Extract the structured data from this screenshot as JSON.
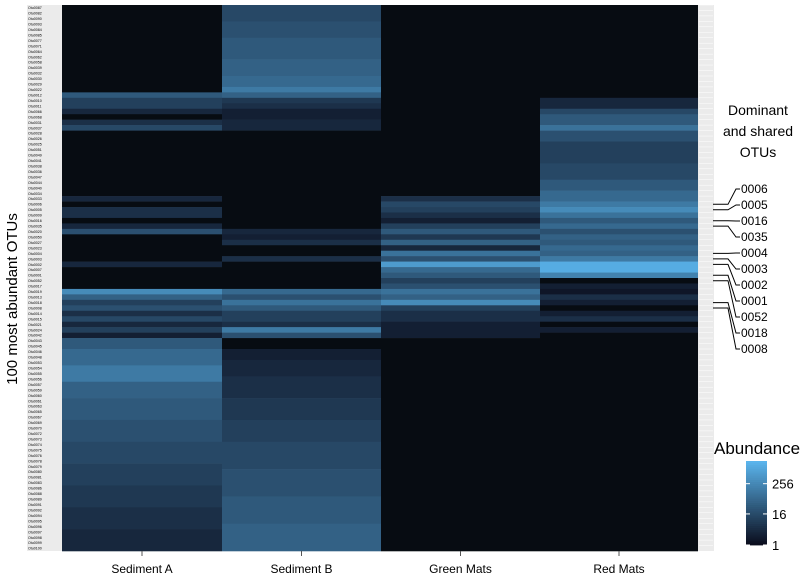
{
  "chart_data": {
    "type": "heatmap",
    "title": "",
    "ylabel": "100 most abundant OTUs",
    "xlabel": "",
    "columns": [
      "Sediment A",
      "Sediment B",
      "Green Mats",
      "Red Mats"
    ],
    "row_labels": [
      "Otu0087",
      "Otu0082",
      "Otu0090",
      "Otu0093",
      "Otu0084",
      "Otu0085",
      "Otu0077",
      "Otu0071",
      "Otu0064",
      "Otu0062",
      "Otu0058",
      "Otu0039",
      "Otu0032",
      "Otu0030",
      "Otu0029",
      "Otu0022",
      "Otu0012",
      "Otu0010",
      "Otu0011",
      "Otu0066",
      "Otu0068",
      "Otu0031",
      "Otu0037",
      "Otu0028",
      "Otu0026",
      "Otu0025",
      "Otu0051",
      "Otu0049",
      "Otu0041",
      "Otu0038",
      "Otu0036",
      "Otu0047",
      "Otu0044",
      "Otu0040",
      "Otu0034",
      "Otu0033",
      "Otu0006",
      "Otu0005",
      "Otu0009",
      "Otu0016",
      "Otu0035",
      "Otu0020",
      "Otu0050",
      "Otu0027",
      "Otu0023",
      "Otu0004",
      "Otu0003",
      "Otu0002",
      "Otu0007",
      "Otu0001",
      "Otu0052",
      "Otu0017",
      "Otu0019",
      "Otu0013",
      "Otu0018",
      "Otu0008",
      "Otu0014",
      "Otu0015",
      "Otu0021",
      "Otu0024",
      "Otu0042",
      "Otu0043",
      "Otu0045",
      "Otu0046",
      "Otu0048",
      "Otu0053",
      "Otu0054",
      "Otu0055",
      "Otu0056",
      "Otu0057",
      "Otu0059",
      "Otu0060",
      "Otu0061",
      "Otu0063",
      "Otu0065",
      "Otu0067",
      "Otu0069",
      "Otu0070",
      "Otu0072",
      "Otu0073",
      "Otu0074",
      "Otu0075",
      "Otu0076",
      "Otu0078",
      "Otu0079",
      "Otu0080",
      "Otu0081",
      "Otu0083",
      "Otu0086",
      "Otu0088",
      "Otu0089",
      "Otu0091",
      "Otu0092",
      "Otu0094",
      "Otu0095",
      "Otu0096",
      "Otu0097",
      "Otu0098",
      "Otu0099",
      "Otu0100"
    ],
    "bands": {
      "Sediment A": [
        {
          "from": 0,
          "to": 16,
          "level": 0
        },
        {
          "from": 16,
          "to": 17,
          "level": 0.45
        },
        {
          "from": 17,
          "to": 19,
          "level": 0.3
        },
        {
          "from": 19,
          "to": 20,
          "level": 0.15
        },
        {
          "from": 20,
          "to": 21,
          "level": 0
        },
        {
          "from": 21,
          "to": 22,
          "level": 0.2
        },
        {
          "from": 22,
          "to": 23,
          "level": 0.35
        },
        {
          "from": 23,
          "to": 35,
          "level": 0
        },
        {
          "from": 35,
          "to": 36,
          "level": 0.15
        },
        {
          "from": 36,
          "to": 37,
          "level": 0
        },
        {
          "from": 37,
          "to": 39,
          "level": 0.2
        },
        {
          "from": 39,
          "to": 40,
          "level": 0
        },
        {
          "from": 40,
          "to": 41,
          "level": 0.15
        },
        {
          "from": 41,
          "to": 42,
          "level": 0.4
        },
        {
          "from": 42,
          "to": 47,
          "level": 0
        },
        {
          "from": 47,
          "to": 48,
          "level": 0.15
        },
        {
          "from": 48,
          "to": 52,
          "level": 0
        },
        {
          "from": 52,
          "to": 53,
          "level": 0.75
        },
        {
          "from": 53,
          "to": 54,
          "level": 0.5
        },
        {
          "from": 54,
          "to": 55,
          "level": 0.3
        },
        {
          "from": 55,
          "to": 56,
          "level": 0.4
        },
        {
          "from": 56,
          "to": 57,
          "level": 0.2
        },
        {
          "from": 57,
          "to": 58,
          "level": 0.35
        },
        {
          "from": 58,
          "to": 59,
          "level": 0.15
        },
        {
          "from": 59,
          "to": 60,
          "level": 0.3
        },
        {
          "from": 60,
          "to": 61,
          "level": 0.1
        },
        {
          "from": 61,
          "to": 63,
          "level": 0.45
        },
        {
          "from": 63,
          "to": 66,
          "level": 0.55
        },
        {
          "from": 66,
          "to": 69,
          "level": 0.65
        },
        {
          "from": 69,
          "to": 72,
          "level": 0.5
        },
        {
          "from": 72,
          "to": 76,
          "level": 0.45
        },
        {
          "from": 76,
          "to": 80,
          "level": 0.4
        },
        {
          "from": 80,
          "to": 84,
          "level": 0.35
        },
        {
          "from": 84,
          "to": 88,
          "level": 0.3
        },
        {
          "from": 88,
          "to": 92,
          "level": 0.25
        },
        {
          "from": 92,
          "to": 96,
          "level": 0.2
        },
        {
          "from": 96,
          "to": 100,
          "level": 0.15
        }
      ],
      "Sediment B": [
        {
          "from": 0,
          "to": 3,
          "level": 0.35
        },
        {
          "from": 3,
          "to": 6,
          "level": 0.4
        },
        {
          "from": 6,
          "to": 10,
          "level": 0.45
        },
        {
          "from": 10,
          "to": 13,
          "level": 0.5
        },
        {
          "from": 13,
          "to": 15,
          "level": 0.55
        },
        {
          "from": 15,
          "to": 16,
          "level": 0.65
        },
        {
          "from": 16,
          "to": 17,
          "level": 0.5
        },
        {
          "from": 17,
          "to": 18,
          "level": 0.25
        },
        {
          "from": 18,
          "to": 19,
          "level": 0.2
        },
        {
          "from": 19,
          "to": 21,
          "level": 0.1
        },
        {
          "from": 21,
          "to": 23,
          "level": 0.15
        },
        {
          "from": 23,
          "to": 41,
          "level": 0
        },
        {
          "from": 41,
          "to": 42,
          "level": 0.15
        },
        {
          "from": 42,
          "to": 43,
          "level": 0.1
        },
        {
          "from": 43,
          "to": 44,
          "level": 0.2
        },
        {
          "from": 44,
          "to": 46,
          "level": 0
        },
        {
          "from": 46,
          "to": 47,
          "level": 0.2
        },
        {
          "from": 47,
          "to": 52,
          "level": 0
        },
        {
          "from": 52,
          "to": 53,
          "level": 0.55
        },
        {
          "from": 53,
          "to": 54,
          "level": 0.4
        },
        {
          "from": 54,
          "to": 55,
          "level": 0.6
        },
        {
          "from": 55,
          "to": 56,
          "level": 0.45
        },
        {
          "from": 56,
          "to": 58,
          "level": 0.3
        },
        {
          "from": 58,
          "to": 59,
          "level": 0.2
        },
        {
          "from": 59,
          "to": 60,
          "level": 0.65
        },
        {
          "from": 60,
          "to": 61,
          "level": 0.4
        },
        {
          "from": 61,
          "to": 63,
          "level": 0
        },
        {
          "from": 63,
          "to": 65,
          "level": 0.1
        },
        {
          "from": 65,
          "to": 68,
          "level": 0.15
        },
        {
          "from": 68,
          "to": 72,
          "level": 0.2
        },
        {
          "from": 72,
          "to": 76,
          "level": 0.25
        },
        {
          "from": 76,
          "to": 80,
          "level": 0.3
        },
        {
          "from": 80,
          "to": 85,
          "level": 0.35
        },
        {
          "from": 85,
          "to": 90,
          "level": 0.4
        },
        {
          "from": 90,
          "to": 95,
          "level": 0.45
        },
        {
          "from": 95,
          "to": 100,
          "level": 0.5
        }
      ],
      "Green Mats": [
        {
          "from": 0,
          "to": 35,
          "level": 0
        },
        {
          "from": 35,
          "to": 36,
          "level": 0.2
        },
        {
          "from": 36,
          "to": 37,
          "level": 0.35
        },
        {
          "from": 37,
          "to": 38,
          "level": 0.3
        },
        {
          "from": 38,
          "to": 39,
          "level": 0.2
        },
        {
          "from": 39,
          "to": 40,
          "level": 0.1
        },
        {
          "from": 40,
          "to": 41,
          "level": 0.3
        },
        {
          "from": 41,
          "to": 42,
          "level": 0.45
        },
        {
          "from": 42,
          "to": 43,
          "level": 0.25
        },
        {
          "from": 43,
          "to": 44,
          "level": 0.5
        },
        {
          "from": 44,
          "to": 45,
          "level": 0.15
        },
        {
          "from": 45,
          "to": 46,
          "level": 0.6
        },
        {
          "from": 46,
          "to": 47,
          "level": 0.4
        },
        {
          "from": 47,
          "to": 48,
          "level": 0.85
        },
        {
          "from": 48,
          "to": 49,
          "level": 0.55
        },
        {
          "from": 49,
          "to": 50,
          "level": 0.45
        },
        {
          "from": 50,
          "to": 51,
          "level": 0.3
        },
        {
          "from": 51,
          "to": 52,
          "level": 0.4
        },
        {
          "from": 52,
          "to": 53,
          "level": 0.6
        },
        {
          "from": 53,
          "to": 54,
          "level": 0.5
        },
        {
          "from": 54,
          "to": 55,
          "level": 0.75
        },
        {
          "from": 55,
          "to": 56,
          "level": 0.3
        },
        {
          "from": 56,
          "to": 58,
          "level": 0.2
        },
        {
          "from": 58,
          "to": 61,
          "level": 0.1
        },
        {
          "from": 61,
          "to": 100,
          "level": 0
        }
      ],
      "Red Mats": [
        {
          "from": 0,
          "to": 17,
          "level": 0
        },
        {
          "from": 17,
          "to": 19,
          "level": 0.15
        },
        {
          "from": 19,
          "to": 20,
          "level": 0.35
        },
        {
          "from": 20,
          "to": 22,
          "level": 0.45
        },
        {
          "from": 22,
          "to": 23,
          "level": 0.6
        },
        {
          "from": 23,
          "to": 25,
          "level": 0.4
        },
        {
          "from": 25,
          "to": 29,
          "level": 0.3
        },
        {
          "from": 29,
          "to": 32,
          "level": 0.35
        },
        {
          "from": 32,
          "to": 34,
          "level": 0.45
        },
        {
          "from": 34,
          "to": 36,
          "level": 0.55
        },
        {
          "from": 36,
          "to": 37,
          "level": 0.65
        },
        {
          "from": 37,
          "to": 38,
          "level": 0.75
        },
        {
          "from": 38,
          "to": 39,
          "level": 0.6
        },
        {
          "from": 39,
          "to": 40,
          "level": 0.45
        },
        {
          "from": 40,
          "to": 41,
          "level": 0.55
        },
        {
          "from": 41,
          "to": 42,
          "level": 0.4
        },
        {
          "from": 42,
          "to": 43,
          "level": 0.5
        },
        {
          "from": 43,
          "to": 44,
          "level": 0.45
        },
        {
          "from": 44,
          "to": 45,
          "level": 0.55
        },
        {
          "from": 45,
          "to": 46,
          "level": 0.5
        },
        {
          "from": 46,
          "to": 47,
          "level": 0.65
        },
        {
          "from": 47,
          "to": 49,
          "level": 0.95
        },
        {
          "from": 49,
          "to": 50,
          "level": 0.7
        },
        {
          "from": 50,
          "to": 51,
          "level": 0
        },
        {
          "from": 51,
          "to": 52,
          "level": 0.1
        },
        {
          "from": 52,
          "to": 53,
          "level": 0.05
        },
        {
          "from": 53,
          "to": 54,
          "level": 0.2
        },
        {
          "from": 54,
          "to": 55,
          "level": 0.1
        },
        {
          "from": 55,
          "to": 56,
          "level": 0
        },
        {
          "from": 56,
          "to": 57,
          "level": 0.1
        },
        {
          "from": 57,
          "to": 58,
          "level": 0.2
        },
        {
          "from": 58,
          "to": 59,
          "level": 0
        },
        {
          "from": 59,
          "to": 60,
          "level": 0.1
        },
        {
          "from": 60,
          "to": 100,
          "level": 0
        }
      ]
    },
    "annotation": {
      "title_lines": [
        "Dominant",
        "and shared",
        "OTUs"
      ],
      "labels": [
        {
          "text": "0006",
          "row": 36
        },
        {
          "text": "0005",
          "row": 37
        },
        {
          "text": "0016",
          "row": 39
        },
        {
          "text": "0035",
          "row": 40
        },
        {
          "text": "0004",
          "row": 45
        },
        {
          "text": "0003",
          "row": 46
        },
        {
          "text": "0002",
          "row": 47
        },
        {
          "text": "0001",
          "row": 49
        },
        {
          "text": "0052",
          "row": 50
        },
        {
          "text": "0018",
          "row": 54
        },
        {
          "text": "0008",
          "row": 55
        }
      ]
    },
    "legend": {
      "title": "Abundance",
      "ticks": [
        {
          "label": "256",
          "level": 0.73
        },
        {
          "label": "16",
          "level": 0.37
        },
        {
          "label": "1",
          "level": 0.0
        }
      ]
    },
    "colors": {
      "low": "#0b0e1e",
      "high": "#5ab4ec",
      "absent": "#070c12",
      "row_label_bg": "#ebebeb"
    }
  }
}
